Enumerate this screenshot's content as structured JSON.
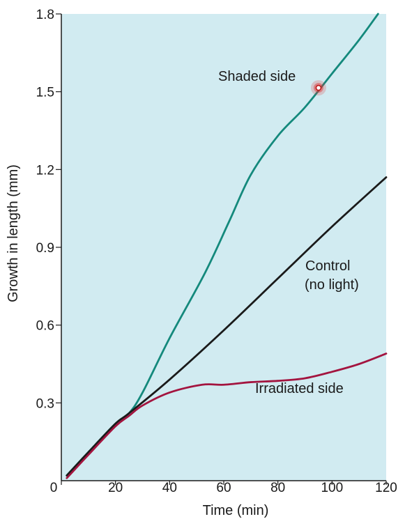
{
  "chart_data": {
    "type": "line",
    "title": "",
    "xlabel": "Time (min)",
    "ylabel": "Growth in length (mm)",
    "xlim": [
      0,
      120
    ],
    "ylim": [
      0,
      1.8
    ],
    "x_ticks": [
      0,
      20,
      40,
      60,
      80,
      100,
      120
    ],
    "y_ticks": [
      0.3,
      0.6,
      0.9,
      1.2,
      1.5,
      1.8
    ],
    "x_tick_labels": [
      "0",
      "20",
      "40",
      "60",
      "80",
      "100",
      "120"
    ],
    "y_tick_labels": [
      "0.3",
      "0.6",
      "0.9",
      "1.2",
      "1.5",
      "1.8"
    ],
    "grid": false,
    "background_color": "#d1ebf1",
    "series": [
      {
        "name": "Shaded side",
        "color": "#14897c",
        "x": [
          2,
          10,
          20,
          25,
          30,
          40,
          53,
          62,
          70,
          80,
          90,
          100,
          110,
          117
        ],
        "y": [
          0.02,
          0.11,
          0.22,
          0.26,
          0.34,
          0.55,
          0.8,
          1.0,
          1.18,
          1.33,
          1.44,
          1.57,
          1.7,
          1.8
        ]
      },
      {
        "name": "Control\n(no light)",
        "color": "#1a1a1a",
        "x": [
          2,
          10,
          20,
          25,
          40,
          60,
          80,
          100,
          120
        ],
        "y": [
          0.02,
          0.11,
          0.22,
          0.26,
          0.39,
          0.58,
          0.78,
          0.98,
          1.17
        ]
      },
      {
        "name": "Irradiated side",
        "color": "#a3143f",
        "x": [
          2,
          10,
          20,
          25,
          30,
          40,
          52,
          60,
          70,
          80,
          90,
          100,
          110,
          120
        ],
        "y": [
          0.01,
          0.1,
          0.21,
          0.25,
          0.29,
          0.34,
          0.37,
          0.37,
          0.38,
          0.385,
          0.395,
          0.42,
          0.45,
          0.49
        ]
      }
    ],
    "annotations": [
      {
        "text": "Shaded side",
        "series": "Shaded side"
      },
      {
        "text": "Control",
        "series": "Control\n(no light)"
      },
      {
        "text": "(no light)",
        "series": "Control\n(no light)"
      },
      {
        "text": "Irradiated side",
        "series": "Irradiated side"
      }
    ],
    "highlight_marker": {
      "series": "Shaded side",
      "x": 95,
      "y": 1.515,
      "color": "#e03030"
    }
  }
}
